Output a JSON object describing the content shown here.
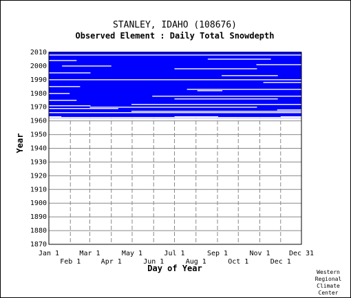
{
  "chart_data": {
    "type": "heatmap",
    "title": "STANLEY, IDAHO   (108676)",
    "subtitle": "Observed Element : Daily Total Snowdepth",
    "xlabel": "Day of Year",
    "ylabel": "Year",
    "credit": [
      "Western",
      "Regional",
      "Climate",
      "Center"
    ],
    "colors": {
      "data": "#0000ff",
      "missing": "#ffffff",
      "grid": "#888888"
    },
    "grid": true,
    "xlim": [
      1,
      365
    ],
    "ylim": [
      1870,
      2010
    ],
    "x_ticks_top": [
      {
        "day": 1,
        "label": "Jan 1"
      },
      {
        "day": 60,
        "label": "Mar 1"
      },
      {
        "day": 121,
        "label": "May 1"
      },
      {
        "day": 182,
        "label": "Jul 1"
      },
      {
        "day": 244,
        "label": "Sep 1"
      },
      {
        "day": 305,
        "label": "Nov 1"
      },
      {
        "day": 365,
        "label": "Dec 31"
      }
    ],
    "x_ticks_bottom": [
      {
        "day": 32,
        "label": "Feb 1"
      },
      {
        "day": 91,
        "label": "Apr 1"
      },
      {
        "day": 152,
        "label": "Jun 1"
      },
      {
        "day": 213,
        "label": "Aug 1"
      },
      {
        "day": 274,
        "label": "Oct 1"
      },
      {
        "day": 335,
        "label": "Dec 1"
      }
    ],
    "y_ticks": [
      2010,
      2000,
      1990,
      1980,
      1970,
      1960,
      1950,
      1940,
      1930,
      1920,
      1910,
      1900,
      1890,
      1880,
      1870
    ],
    "data_years": [
      1962,
      2010
    ],
    "missing_years": [
      {
        "year": 1962.5,
        "start": 1,
        "end": 365
      },
      {
        "year": 1963,
        "start": 1,
        "end": 18
      },
      {
        "year": 1963,
        "start": 182,
        "end": 244
      },
      {
        "year": 1963,
        "start": 335,
        "end": 365
      },
      {
        "year": 1966,
        "start": 1,
        "end": 365
      },
      {
        "year": 1967,
        "start": 120,
        "end": 365
      },
      {
        "year": 1968,
        "start": 330,
        "end": 365
      },
      {
        "year": 1969,
        "start": 1,
        "end": 100
      },
      {
        "year": 1970,
        "start": 60,
        "end": 300
      },
      {
        "year": 1971,
        "start": 1,
        "end": 60
      },
      {
        "year": 1972,
        "start": 120,
        "end": 365
      },
      {
        "year": 1975,
        "start": 1,
        "end": 40
      },
      {
        "year": 1976,
        "start": 182,
        "end": 330
      },
      {
        "year": 1978,
        "start": 150,
        "end": 365
      },
      {
        "year": 1980,
        "start": 1,
        "end": 30
      },
      {
        "year": 1982,
        "start": 215,
        "end": 250
      },
      {
        "year": 1983,
        "start": 200,
        "end": 365
      },
      {
        "year": 1985,
        "start": 1,
        "end": 45
      },
      {
        "year": 1988,
        "start": 310,
        "end": 365
      },
      {
        "year": 1990,
        "start": 1,
        "end": 365
      },
      {
        "year": 1993,
        "start": 250,
        "end": 330
      },
      {
        "year": 1995,
        "start": 1,
        "end": 60
      },
      {
        "year": 1998,
        "start": 182,
        "end": 300
      },
      {
        "year": 2000,
        "start": 20,
        "end": 90
      },
      {
        "year": 2001,
        "start": 300,
        "end": 365
      },
      {
        "year": 2004,
        "start": 1,
        "end": 40
      },
      {
        "year": 2005,
        "start": 230,
        "end": 320
      },
      {
        "year": 2008,
        "start": 1,
        "end": 365
      }
    ]
  }
}
